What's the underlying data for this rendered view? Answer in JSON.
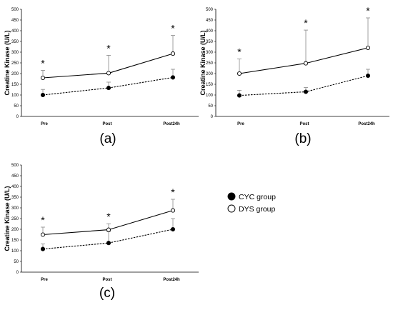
{
  "legend": [
    {
      "label": "CYC group",
      "marker": "filled-circle",
      "color": "#000000",
      "line": "dashed"
    },
    {
      "label": "DYS group",
      "marker": "open-circle",
      "color": "#000000",
      "line": "solid"
    }
  ],
  "chart_data": [
    {
      "type": "line",
      "panel_label": "(a)",
      "ylabel": "Creatine Kinase (U/L)",
      "xlabel": "",
      "categories": [
        "Pre",
        "Post",
        "Post24h"
      ],
      "ylim": [
        0,
        500
      ],
      "yticks": [
        "0",
        "50",
        "100",
        "150",
        "200",
        "250",
        "300",
        "350",
        "400",
        "450",
        "500"
      ],
      "grid": false,
      "series": [
        {
          "name": "CYC group",
          "values": [
            100,
            133,
            182
          ],
          "error_upper": [
            126,
            160,
            220
          ],
          "line": "dashed",
          "marker": "filled"
        },
        {
          "name": "DYS group",
          "values": [
            180,
            202,
            293
          ],
          "error_upper": [
            215,
            285,
            378
          ],
          "line": "solid",
          "marker": "open",
          "significance": [
            "*",
            "*",
            "*"
          ]
        }
      ]
    },
    {
      "type": "line",
      "panel_label": "(b)",
      "ylabel": "Creatine Kinase (U/L)",
      "xlabel": "",
      "categories": [
        "Pre",
        "Post",
        "Post24h"
      ],
      "ylim": [
        0,
        500
      ],
      "yticks": [
        "0",
        "50",
        "100",
        "150",
        "200",
        "250",
        "300",
        "350",
        "400",
        "450",
        "500"
      ],
      "grid": false,
      "series": [
        {
          "name": "CYC group",
          "values": [
            98,
            115,
            190
          ],
          "error_upper": [
            122,
            135,
            220
          ],
          "line": "dashed",
          "marker": "filled"
        },
        {
          "name": "DYS group",
          "values": [
            200,
            248,
            320
          ],
          "error_upper": [
            268,
            403,
            460
          ],
          "line": "solid",
          "marker": "open",
          "significance": [
            "*",
            "*",
            "*"
          ]
        }
      ]
    },
    {
      "type": "line",
      "panel_label": "(c)",
      "ylabel": "Creatine Kinase (U/L)",
      "xlabel": "",
      "categories": [
        "Pre",
        "Post",
        "Post24h"
      ],
      "ylim": [
        0,
        500
      ],
      "yticks": [
        "0",
        "50",
        "100",
        "150",
        "200",
        "250",
        "300",
        "350",
        "400",
        "450",
        "500"
      ],
      "grid": false,
      "series": [
        {
          "name": "CYC group",
          "values": [
            108,
            136,
            200
          ],
          "error_upper": [
            132,
            188,
            250
          ],
          "line": "dashed",
          "marker": "filled"
        },
        {
          "name": "DYS group",
          "values": [
            175,
            198,
            288
          ],
          "error_upper": [
            210,
            226,
            340
          ],
          "line": "solid",
          "marker": "open",
          "significance": [
            "*",
            "*",
            "*"
          ]
        }
      ]
    }
  ]
}
